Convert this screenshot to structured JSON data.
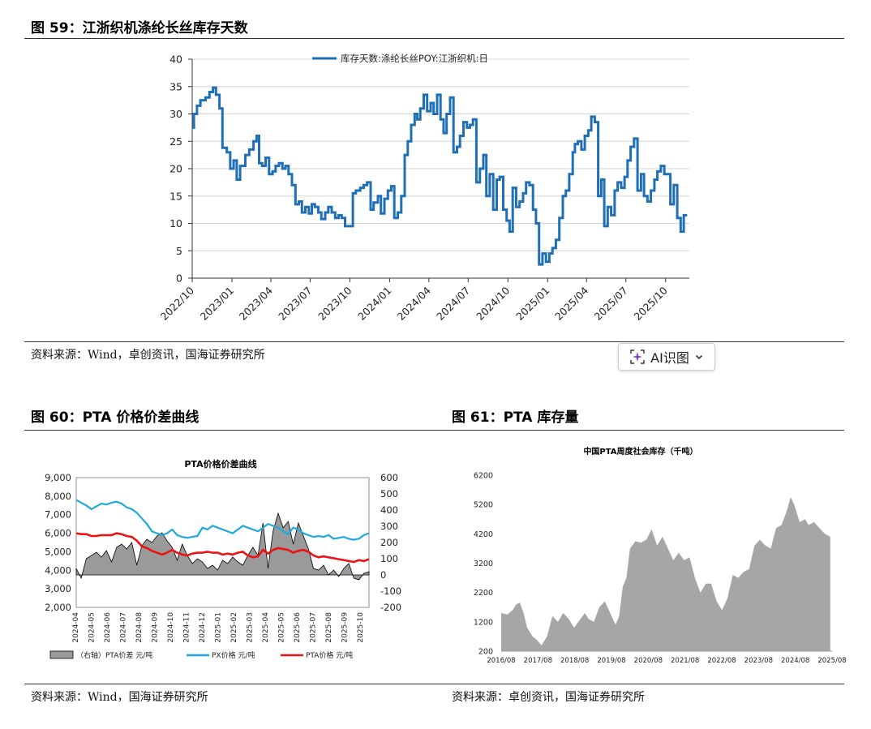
{
  "fig59": {
    "title": "图 59：江浙织机涤纶长丝库存天数",
    "source": "资料来源：Wind，卓创资讯，国海证券研究所"
  },
  "fig60": {
    "title": "图 60：PTA 价格价差曲线",
    "source": "资料来源：Wind，国海证券研究所"
  },
  "fig61": {
    "title": "图 61：PTA 库存量",
    "source": "资料来源：卓创资讯，国海证券研究所"
  },
  "ai_button": {
    "label": "AI识图",
    "icon": "sparkle-icon",
    "chevron": "chevron-down-icon"
  },
  "chart_data": [
    {
      "type": "line",
      "title": "",
      "legend": "top-center",
      "series": [
        {
          "name": "库存天数:涤纶长丝POY:江浙织机:日",
          "color": "#1f6fb6"
        }
      ],
      "x_ticks": [
        "2022/10",
        "2023/01",
        "2023/04",
        "2023/07",
        "2023/10",
        "2024/01",
        "2024/04",
        "2024/07",
        "2024/10",
        "2025/01",
        "2025/04",
        "2025/07",
        "2025/10"
      ],
      "ylim": [
        0,
        40
      ],
      "y_ticks": [
        0,
        5,
        10,
        15,
        20,
        25,
        30,
        35,
        40
      ],
      "grid": "horizontal",
      "points": [
        [
          "2022/10/01",
          27.5
        ],
        [
          "2022/10/05",
          30
        ],
        [
          "2022/10/12",
          31.5
        ],
        [
          "2022/10/20",
          32.5
        ],
        [
          "2022/11/01",
          33
        ],
        [
          "2022/11/10",
          34
        ],
        [
          "2022/11/18",
          34.8
        ],
        [
          "2022/11/25",
          33.5
        ],
        [
          "2022/12/03",
          31
        ],
        [
          "2022/12/10",
          23.8
        ],
        [
          "2022/12/20",
          23
        ],
        [
          "2022/12/28",
          20
        ],
        [
          "2023/01/05",
          21.5
        ],
        [
          "2023/01/12",
          18
        ],
        [
          "2023/01/20",
          20.5
        ],
        [
          "2023/02/01",
          22.5
        ],
        [
          "2023/02/10",
          23.5
        ],
        [
          "2023/02/20",
          25
        ],
        [
          "2023/02/27",
          26
        ],
        [
          "2023/03/05",
          21
        ],
        [
          "2023/03/12",
          20.5
        ],
        [
          "2023/03/20",
          22
        ],
        [
          "2023/03/28",
          19
        ],
        [
          "2023/04/05",
          19.5
        ],
        [
          "2023/04/12",
          20.5
        ],
        [
          "2023/04/20",
          21
        ],
        [
          "2023/04/28",
          20
        ],
        [
          "2023/05/05",
          20.5
        ],
        [
          "2023/05/12",
          19
        ],
        [
          "2023/05/20",
          17
        ],
        [
          "2023/05/28",
          13.5
        ],
        [
          "2023/06/05",
          14
        ],
        [
          "2023/06/12",
          12
        ],
        [
          "2023/06/20",
          13
        ],
        [
          "2023/06/28",
          11.8
        ],
        [
          "2023/07/05",
          13.5
        ],
        [
          "2023/07/12",
          13
        ],
        [
          "2023/07/20",
          12
        ],
        [
          "2023/07/27",
          10.8
        ],
        [
          "2023/08/05",
          12
        ],
        [
          "2023/08/12",
          13
        ],
        [
          "2023/08/20",
          12
        ],
        [
          "2023/08/28",
          11
        ],
        [
          "2023/09/05",
          11.5
        ],
        [
          "2023/09/12",
          11
        ],
        [
          "2023/09/20",
          9.5
        ],
        [
          "2023/10/01",
          9.5
        ],
        [
          "2023/10/08",
          15.5
        ],
        [
          "2023/10/15",
          16
        ],
        [
          "2023/10/25",
          16.5
        ],
        [
          "2023/11/02",
          17
        ],
        [
          "2023/11/10",
          17.5
        ],
        [
          "2023/11/18",
          12.5
        ],
        [
          "2023/11/25",
          13.8
        ],
        [
          "2023/12/05",
          15
        ],
        [
          "2023/12/12",
          11.8
        ],
        [
          "2023/12/20",
          14.5
        ],
        [
          "2023/12/28",
          16
        ],
        [
          "2024/01/05",
          16.8
        ],
        [
          "2024/01/12",
          11
        ],
        [
          "2024/01/20",
          12
        ],
        [
          "2024/01/28",
          15
        ],
        [
          "2024/02/05",
          22.5
        ],
        [
          "2024/02/12",
          25
        ],
        [
          "2024/02/20",
          28
        ],
        [
          "2024/02/28",
          30
        ],
        [
          "2024/03/05",
          29
        ],
        [
          "2024/03/12",
          31
        ],
        [
          "2024/03/20",
          33.5
        ],
        [
          "2024/03/28",
          30.5
        ],
        [
          "2024/04/05",
          32
        ],
        [
          "2024/04/12",
          30
        ],
        [
          "2024/04/20",
          33.5
        ],
        [
          "2024/04/28",
          29
        ],
        [
          "2024/05/05",
          26.5
        ],
        [
          "2024/05/12",
          30
        ],
        [
          "2024/05/20",
          33
        ],
        [
          "2024/05/28",
          23
        ],
        [
          "2024/06/05",
          24
        ],
        [
          "2024/06/12",
          26
        ],
        [
          "2024/06/20",
          28.5
        ],
        [
          "2024/06/28",
          27.5
        ],
        [
          "2024/07/05",
          28
        ],
        [
          "2024/07/12",
          29
        ],
        [
          "2024/07/20",
          17.5
        ],
        [
          "2024/07/28",
          20
        ],
        [
          "2024/08/05",
          22.5
        ],
        [
          "2024/08/12",
          15
        ],
        [
          "2024/08/20",
          19
        ],
        [
          "2024/08/28",
          12.5
        ],
        [
          "2024/09/05",
          18
        ],
        [
          "2024/09/12",
          18.5
        ],
        [
          "2024/09/20",
          12.5
        ],
        [
          "2024/09/28",
          10.5
        ],
        [
          "2024/10/05",
          8.5
        ],
        [
          "2024/10/12",
          16.5
        ],
        [
          "2024/10/20",
          13
        ],
        [
          "2024/10/28",
          14
        ],
        [
          "2024/11/05",
          15.5
        ],
        [
          "2024/11/12",
          17.5
        ],
        [
          "2024/11/20",
          17
        ],
        [
          "2024/11/28",
          12.5
        ],
        [
          "2024/12/05",
          10
        ],
        [
          "2024/12/12",
          2.5
        ],
        [
          "2024/12/20",
          4.5
        ],
        [
          "2024/12/28",
          3
        ],
        [
          "2025/01/05",
          4.5
        ],
        [
          "2025/01/12",
          5.5
        ],
        [
          "2025/01/20",
          7
        ],
        [
          "2025/01/28",
          11
        ],
        [
          "2025/02/05",
          15
        ],
        [
          "2025/02/12",
          16
        ],
        [
          "2025/02/20",
          19
        ],
        [
          "2025/02/28",
          23
        ],
        [
          "2025/03/05",
          24.5
        ],
        [
          "2025/03/12",
          25
        ],
        [
          "2025/03/20",
          23.5
        ],
        [
          "2025/03/28",
          26
        ],
        [
          "2025/04/05",
          27
        ],
        [
          "2025/04/12",
          29.5
        ],
        [
          "2025/04/20",
          28.5
        ],
        [
          "2025/04/28",
          15
        ],
        [
          "2025/05/05",
          18
        ],
        [
          "2025/05/12",
          9.5
        ],
        [
          "2025/05/20",
          13
        ],
        [
          "2025/05/28",
          11.5
        ],
        [
          "2025/06/05",
          16
        ],
        [
          "2025/06/12",
          17.5
        ],
        [
          "2025/06/20",
          16.5
        ],
        [
          "2025/06/28",
          18.5
        ],
        [
          "2025/07/05",
          21.5
        ],
        [
          "2025/07/12",
          24
        ],
        [
          "2025/07/20",
          25.5
        ],
        [
          "2025/07/28",
          16
        ],
        [
          "2025/08/05",
          19
        ],
        [
          "2025/08/12",
          15
        ],
        [
          "2025/08/20",
          14
        ],
        [
          "2025/08/28",
          16
        ],
        [
          "2025/09/05",
          18
        ],
        [
          "2025/09/12",
          19.5
        ],
        [
          "2025/09/20",
          20.5
        ],
        [
          "2025/09/28",
          19
        ],
        [
          "2025/10/05",
          19
        ],
        [
          "2025/10/12",
          13.5
        ],
        [
          "2025/10/20",
          17
        ],
        [
          "2025/10/28",
          11
        ],
        [
          "2025/11/05",
          8.5
        ],
        [
          "2025/11/12",
          11.5
        ],
        [
          "2025/11/20",
          11.5
        ]
      ]
    },
    {
      "type": "line",
      "title": "PTA价格价差曲线",
      "legend": "bottom",
      "x_ticks": [
        "2024-04",
        "2024-05",
        "2024-06",
        "2024-07",
        "2024-08",
        "2024-09",
        "2024-10",
        "2024-11",
        "2024-12",
        "2025-01",
        "2025-02",
        "2025-03",
        "2025-04",
        "2025-05",
        "2025-06",
        "2025-07",
        "2025-08",
        "2025-09",
        "2025-10"
      ],
      "y_left": {
        "range": [
          2000,
          9000
        ],
        "ticks": [
          "2,000",
          "3,000",
          "4,000",
          "5,000",
          "6,000",
          "7,000",
          "8,000",
          "9,000"
        ]
      },
      "y_right": {
        "range": [
          -200,
          600
        ],
        "ticks": [
          "-200",
          "-100",
          "0",
          "100",
          "200",
          "300",
          "400",
          "500",
          "600"
        ]
      },
      "series": [
        {
          "name": "（右轴）PTA价差  元/吨",
          "type": "area",
          "axis": "right",
          "color": "#9a9a9a",
          "values": [
            40,
            -20,
            100,
            120,
            140,
            110,
            150,
            80,
            170,
            190,
            160,
            200,
            60,
            180,
            220,
            200,
            240,
            260,
            210,
            170,
            90,
            190,
            120,
            70,
            100,
            80,
            40,
            60,
            30,
            90,
            70,
            110,
            80,
            60,
            120,
            170,
            120,
            320,
            40,
            270,
            380,
            290,
            330,
            190,
            320,
            240,
            160,
            40,
            30,
            60,
            0,
            30,
            -10,
            40,
            70,
            -20,
            -30,
            10,
            20
          ]
        },
        {
          "name": "PX价格  元/吨",
          "type": "line",
          "axis": "left",
          "color": "#1fa8dc",
          "values": [
            7800,
            7650,
            7500,
            7300,
            7450,
            7600,
            7550,
            7650,
            7700,
            7600,
            7400,
            7300,
            7100,
            6800,
            6500,
            6100,
            6000,
            5900,
            6000,
            6200,
            5900,
            5800,
            5750,
            5800,
            5850,
            6300,
            6200,
            6400,
            6300,
            6200,
            6100,
            6000,
            6200,
            6400,
            6300,
            6200,
            6100,
            6300,
            6500,
            6400,
            6300,
            6100,
            5950,
            6300,
            6200,
            6000,
            5900,
            5800,
            5850,
            5800,
            5900,
            5700,
            5750,
            5800,
            5700,
            5650,
            5700,
            5900,
            6000
          ]
        },
        {
          "name": "PTA价格  元/吨",
          "type": "line",
          "axis": "left",
          "color": "#ee1111",
          "values": [
            6000,
            5950,
            5950,
            5850,
            5850,
            5900,
            5900,
            5900,
            6000,
            5950,
            5850,
            5800,
            5600,
            5300,
            5200,
            5050,
            4950,
            4850,
            4950,
            5100,
            4950,
            4850,
            4800,
            4900,
            4950,
            4950,
            5000,
            4950,
            4950,
            4850,
            4900,
            4850,
            4950,
            5000,
            4800,
            4700,
            4750,
            5100,
            4900,
            5100,
            5200,
            5150,
            5100,
            4950,
            5050,
            5100,
            5000,
            4800,
            4700,
            4750,
            4700,
            4650,
            4600,
            4550,
            4500,
            4450,
            4550,
            4500,
            4600
          ]
        }
      ]
    },
    {
      "type": "area",
      "title": "中国PTA周度社会库存（千吨）",
      "legend": "none",
      "x_ticks": [
        "2016/08",
        "2017/08",
        "2018/08",
        "2019/08",
        "2020/08",
        "2021/08",
        "2022/08",
        "2023/08",
        "2024/08",
        "2025/08"
      ],
      "ylim": [
        200,
        6200
      ],
      "y_ticks": [
        200,
        1200,
        2200,
        3200,
        4200,
        5200,
        6200
      ],
      "series": [
        {
          "name": "PTA",
          "color": "#a6a6a6",
          "x": [
            2016.58,
            2016.75,
            2016.9,
            2017.0,
            2017.1,
            2017.2,
            2017.3,
            2017.45,
            2017.55,
            2017.7,
            2017.85,
            2018.0,
            2018.15,
            2018.3,
            2018.45,
            2018.6,
            2018.75,
            2018.9,
            2019.0,
            2019.15,
            2019.3,
            2019.45,
            2019.6,
            2019.75,
            2019.85,
            2019.95,
            2020.05,
            2020.15,
            2020.3,
            2020.45,
            2020.6,
            2020.75,
            2020.9,
            2021.05,
            2021.2,
            2021.35,
            2021.5,
            2021.65,
            2021.8,
            2021.95,
            2022.1,
            2022.25,
            2022.4,
            2022.55,
            2022.7,
            2022.85,
            2023.0,
            2023.15,
            2023.3,
            2023.45,
            2023.6,
            2023.75,
            2023.9,
            2024.05,
            2024.2,
            2024.35,
            2024.5,
            2024.6,
            2024.7,
            2024.85,
            2025.0,
            2025.1,
            2025.25,
            2025.4,
            2025.55,
            2025.7
          ],
          "values": [
            1500,
            1450,
            1600,
            1800,
            1850,
            1500,
            1000,
            700,
            600,
            400,
            700,
            1400,
            1200,
            1500,
            1300,
            1000,
            1250,
            1500,
            1300,
            1200,
            1700,
            1900,
            1500,
            1100,
            1400,
            2400,
            2700,
            3700,
            3950,
            3900,
            4000,
            4350,
            3800,
            4100,
            3700,
            3300,
            3550,
            3300,
            3400,
            2700,
            2200,
            2500,
            2500,
            1900,
            1600,
            2000,
            2800,
            2700,
            2900,
            3000,
            3800,
            4000,
            3800,
            3700,
            4400,
            4500,
            5000,
            5450,
            5200,
            4600,
            4700,
            4500,
            4600,
            4400,
            4200,
            4100
          ]
        }
      ]
    }
  ]
}
